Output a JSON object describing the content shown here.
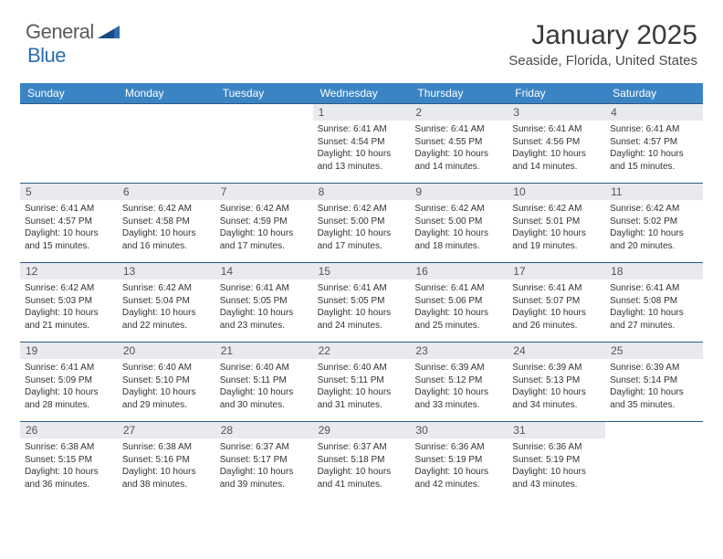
{
  "logo": {
    "text1": "General",
    "text2": "Blue"
  },
  "title": "January 2025",
  "location": "Seaside, Florida, United States",
  "colors": {
    "header_bg": "#3b84c4",
    "header_text": "#ffffff",
    "daynum_bg": "#e8eaed",
    "week_border": "#2b5a8a",
    "logo_gray": "#5a5a5a",
    "logo_blue": "#2b6bb0"
  },
  "weekdays": [
    "Sunday",
    "Monday",
    "Tuesday",
    "Wednesday",
    "Thursday",
    "Friday",
    "Saturday"
  ],
  "weeks": [
    [
      {
        "empty": true
      },
      {
        "empty": true
      },
      {
        "empty": true
      },
      {
        "n": "1",
        "sr": "6:41 AM",
        "ss": "4:54 PM",
        "dl": "10 hours and 13 minutes."
      },
      {
        "n": "2",
        "sr": "6:41 AM",
        "ss": "4:55 PM",
        "dl": "10 hours and 14 minutes."
      },
      {
        "n": "3",
        "sr": "6:41 AM",
        "ss": "4:56 PM",
        "dl": "10 hours and 14 minutes."
      },
      {
        "n": "4",
        "sr": "6:41 AM",
        "ss": "4:57 PM",
        "dl": "10 hours and 15 minutes."
      }
    ],
    [
      {
        "n": "5",
        "sr": "6:41 AM",
        "ss": "4:57 PM",
        "dl": "10 hours and 15 minutes."
      },
      {
        "n": "6",
        "sr": "6:42 AM",
        "ss": "4:58 PM",
        "dl": "10 hours and 16 minutes."
      },
      {
        "n": "7",
        "sr": "6:42 AM",
        "ss": "4:59 PM",
        "dl": "10 hours and 17 minutes."
      },
      {
        "n": "8",
        "sr": "6:42 AM",
        "ss": "5:00 PM",
        "dl": "10 hours and 17 minutes."
      },
      {
        "n": "9",
        "sr": "6:42 AM",
        "ss": "5:00 PM",
        "dl": "10 hours and 18 minutes."
      },
      {
        "n": "10",
        "sr": "6:42 AM",
        "ss": "5:01 PM",
        "dl": "10 hours and 19 minutes."
      },
      {
        "n": "11",
        "sr": "6:42 AM",
        "ss": "5:02 PM",
        "dl": "10 hours and 20 minutes."
      }
    ],
    [
      {
        "n": "12",
        "sr": "6:42 AM",
        "ss": "5:03 PM",
        "dl": "10 hours and 21 minutes."
      },
      {
        "n": "13",
        "sr": "6:42 AM",
        "ss": "5:04 PM",
        "dl": "10 hours and 22 minutes."
      },
      {
        "n": "14",
        "sr": "6:41 AM",
        "ss": "5:05 PM",
        "dl": "10 hours and 23 minutes."
      },
      {
        "n": "15",
        "sr": "6:41 AM",
        "ss": "5:05 PM",
        "dl": "10 hours and 24 minutes."
      },
      {
        "n": "16",
        "sr": "6:41 AM",
        "ss": "5:06 PM",
        "dl": "10 hours and 25 minutes."
      },
      {
        "n": "17",
        "sr": "6:41 AM",
        "ss": "5:07 PM",
        "dl": "10 hours and 26 minutes."
      },
      {
        "n": "18",
        "sr": "6:41 AM",
        "ss": "5:08 PM",
        "dl": "10 hours and 27 minutes."
      }
    ],
    [
      {
        "n": "19",
        "sr": "6:41 AM",
        "ss": "5:09 PM",
        "dl": "10 hours and 28 minutes."
      },
      {
        "n": "20",
        "sr": "6:40 AM",
        "ss": "5:10 PM",
        "dl": "10 hours and 29 minutes."
      },
      {
        "n": "21",
        "sr": "6:40 AM",
        "ss": "5:11 PM",
        "dl": "10 hours and 30 minutes."
      },
      {
        "n": "22",
        "sr": "6:40 AM",
        "ss": "5:11 PM",
        "dl": "10 hours and 31 minutes."
      },
      {
        "n": "23",
        "sr": "6:39 AM",
        "ss": "5:12 PM",
        "dl": "10 hours and 33 minutes."
      },
      {
        "n": "24",
        "sr": "6:39 AM",
        "ss": "5:13 PM",
        "dl": "10 hours and 34 minutes."
      },
      {
        "n": "25",
        "sr": "6:39 AM",
        "ss": "5:14 PM",
        "dl": "10 hours and 35 minutes."
      }
    ],
    [
      {
        "n": "26",
        "sr": "6:38 AM",
        "ss": "5:15 PM",
        "dl": "10 hours and 36 minutes."
      },
      {
        "n": "27",
        "sr": "6:38 AM",
        "ss": "5:16 PM",
        "dl": "10 hours and 38 minutes."
      },
      {
        "n": "28",
        "sr": "6:37 AM",
        "ss": "5:17 PM",
        "dl": "10 hours and 39 minutes."
      },
      {
        "n": "29",
        "sr": "6:37 AM",
        "ss": "5:18 PM",
        "dl": "10 hours and 41 minutes."
      },
      {
        "n": "30",
        "sr": "6:36 AM",
        "ss": "5:19 PM",
        "dl": "10 hours and 42 minutes."
      },
      {
        "n": "31",
        "sr": "6:36 AM",
        "ss": "5:19 PM",
        "dl": "10 hours and 43 minutes."
      },
      {
        "empty": true
      }
    ]
  ],
  "labels": {
    "sunrise": "Sunrise: ",
    "sunset": "Sunset: ",
    "daylight": "Daylight: "
  }
}
